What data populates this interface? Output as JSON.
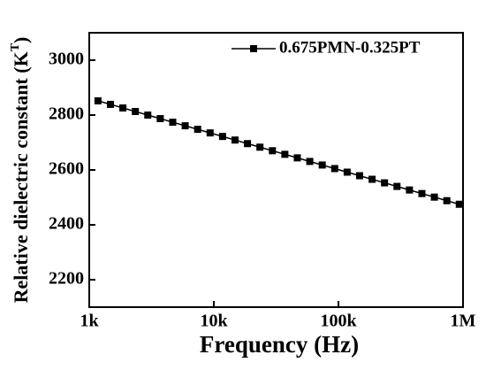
{
  "chart_data": {
    "type": "line",
    "xlabel": "Frequency (Hz)",
    "ylabel_parts": [
      "Relative dielectric constant (K",
      "T",
      ")"
    ],
    "x_log": true,
    "xlim": [
      1000,
      1000000
    ],
    "xticks": [
      {
        "value": 1000,
        "label": "1k"
      },
      {
        "value": 10000,
        "label": "10k"
      },
      {
        "value": 100000,
        "label": "100k"
      },
      {
        "value": 1000000,
        "label": "1M"
      }
    ],
    "ylim": [
      2100,
      3100
    ],
    "yticks": [
      2200,
      2400,
      2600,
      2800,
      3000
    ],
    "legend_position": "upper right",
    "x": [
      1175,
      1479,
      1862,
      2344,
      2951,
      3715,
      4677,
      5888,
      7413,
      9333,
      11749,
      14791,
      18621,
      23442,
      29512,
      37154,
      46774,
      58884,
      74131,
      93325,
      117490,
      147911,
      186209,
      234423,
      295121,
      371535,
      467735,
      588844,
      741310,
      933254
    ],
    "series": [
      {
        "name": "0.675PMN-0.325PT",
        "color": "#000000",
        "values": [
          2852,
          2839,
          2826,
          2813,
          2800,
          2787,
          2774,
          2761,
          2748,
          2735,
          2722,
          2709,
          2696,
          2683,
          2670,
          2657,
          2644,
          2631,
          2618,
          2605,
          2592,
          2579,
          2566,
          2553,
          2540,
          2527,
          2514,
          2501,
          2488,
          2475
        ]
      }
    ]
  }
}
